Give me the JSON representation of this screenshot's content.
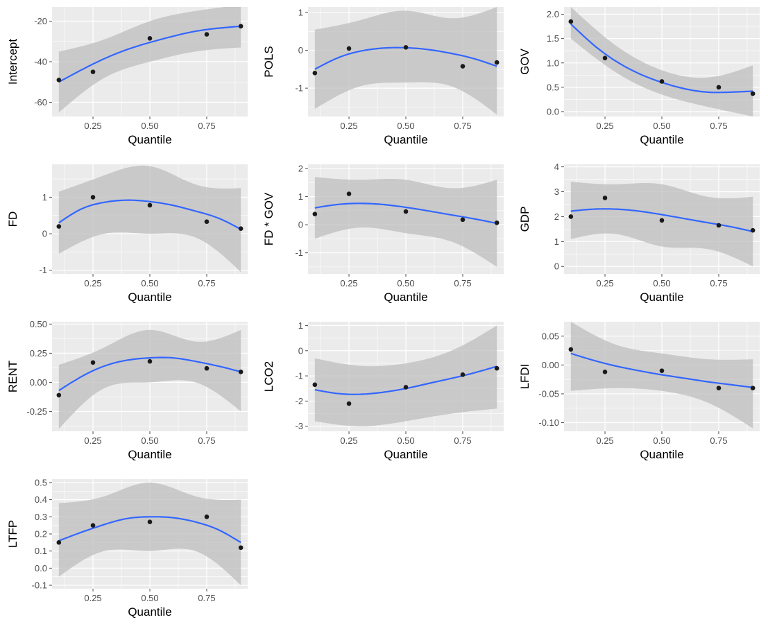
{
  "colors": {
    "panel_background": "#ebebeb",
    "grid_major": "#ffffff",
    "confidence_band": "#bdbdbd",
    "smooth_line": "#3366ff",
    "points": "#1a1a1a",
    "tick_text": "#4d4d4d"
  },
  "chart_data": [
    {
      "type": "scatter",
      "ylabel": "Intercept",
      "xlabel": "Quantile",
      "xlim": [
        0.07,
        0.93
      ],
      "ylim": [
        -67,
        -13
      ],
      "xticks": [
        0.25,
        0.5,
        0.75
      ],
      "xtick_labels": [
        "0.25",
        "0.50",
        "0.75"
      ],
      "yticks": [
        -60,
        -40,
        -20
      ],
      "ytick_labels": [
        "-60",
        "-40",
        "-20"
      ],
      "points": {
        "x": [
          0.1,
          0.25,
          0.5,
          0.75,
          0.9
        ],
        "y": [
          -49,
          -45,
          -28.5,
          -26.5,
          -22.5
        ]
      },
      "smooth": {
        "x": [
          0.1,
          0.2,
          0.3,
          0.4,
          0.5,
          0.6,
          0.7,
          0.8,
          0.9
        ],
        "y": [
          -50,
          -44,
          -38.5,
          -34,
          -30.5,
          -27.5,
          -25,
          -23.5,
          -22.5
        ]
      },
      "band": {
        "x": [
          0.1,
          0.3,
          0.5,
          0.7,
          0.9
        ],
        "lower": [
          -65,
          -48,
          -40,
          -35,
          -33
        ],
        "upper": [
          -35,
          -29,
          -20,
          -15,
          -12
        ]
      }
    },
    {
      "type": "scatter",
      "ylabel": "POLS",
      "xlabel": "Quantile",
      "xlim": [
        0.07,
        0.93
      ],
      "ylim": [
        -1.75,
        1.15
      ],
      "xticks": [
        0.25,
        0.5,
        0.75
      ],
      "xtick_labels": [
        "0.25",
        "0.50",
        "0.75"
      ],
      "yticks": [
        -1,
        0,
        1
      ],
      "ytick_labels": [
        "-1",
        "0",
        "1"
      ],
      "points": {
        "x": [
          0.1,
          0.25,
          0.5,
          0.75,
          0.9
        ],
        "y": [
          -0.6,
          0.05,
          0.08,
          -0.42,
          -0.32
        ]
      },
      "smooth": {
        "x": [
          0.1,
          0.2,
          0.3,
          0.4,
          0.5,
          0.6,
          0.7,
          0.8,
          0.9
        ],
        "y": [
          -0.5,
          -0.2,
          -0.02,
          0.06,
          0.07,
          0.02,
          -0.08,
          -0.22,
          -0.42
        ]
      },
      "band": {
        "x": [
          0.1,
          0.3,
          0.5,
          0.7,
          0.9
        ],
        "lower": [
          -1.55,
          -0.95,
          -0.85,
          -0.95,
          -1.7
        ],
        "upper": [
          0.55,
          0.8,
          1.05,
          0.85,
          1.15
        ]
      }
    },
    {
      "type": "scatter",
      "ylabel": "GOV",
      "xlabel": "Quantile",
      "xlim": [
        0.07,
        0.93
      ],
      "ylim": [
        -0.1,
        2.15
      ],
      "xticks": [
        0.25,
        0.5,
        0.75
      ],
      "xtick_labels": [
        "0.25",
        "0.50",
        "0.75"
      ],
      "yticks": [
        0,
        0.5,
        1,
        1.5,
        2
      ],
      "ytick_labels": [
        "0.0",
        "0.5",
        "1.0",
        "1.5",
        "2.0"
      ],
      "points": {
        "x": [
          0.1,
          0.25,
          0.5,
          0.75,
          0.9
        ],
        "y": [
          1.85,
          1.1,
          0.62,
          0.5,
          0.37
        ]
      },
      "smooth": {
        "x": [
          0.1,
          0.2,
          0.3,
          0.4,
          0.5,
          0.6,
          0.7,
          0.8,
          0.9
        ],
        "y": [
          1.8,
          1.37,
          1.03,
          0.78,
          0.6,
          0.47,
          0.4,
          0.4,
          0.42
        ]
      },
      "band": {
        "x": [
          0.1,
          0.3,
          0.5,
          0.7,
          0.9
        ],
        "lower": [
          1.5,
          0.8,
          0.35,
          0.1,
          -0.1
        ],
        "upper": [
          2.15,
          1.35,
          0.85,
          0.7,
          0.95
        ]
      }
    },
    {
      "type": "scatter",
      "ylabel": "FD",
      "xlabel": "Quantile",
      "xlim": [
        0.07,
        0.93
      ],
      "ylim": [
        -1.1,
        1.9
      ],
      "xticks": [
        0.25,
        0.5,
        0.75
      ],
      "xtick_labels": [
        "0.25",
        "0.50",
        "0.75"
      ],
      "yticks": [
        -1,
        0,
        1
      ],
      "ytick_labels": [
        "-1",
        "0",
        "1"
      ],
      "points": {
        "x": [
          0.1,
          0.25,
          0.5,
          0.75,
          0.9
        ],
        "y": [
          0.2,
          1.0,
          0.78,
          0.33,
          0.14
        ]
      },
      "smooth": {
        "x": [
          0.1,
          0.2,
          0.3,
          0.4,
          0.5,
          0.6,
          0.7,
          0.8,
          0.9
        ],
        "y": [
          0.3,
          0.68,
          0.86,
          0.92,
          0.88,
          0.78,
          0.62,
          0.43,
          0.12
        ]
      },
      "band": {
        "x": [
          0.1,
          0.3,
          0.5,
          0.7,
          0.9
        ],
        "lower": [
          -0.55,
          0.0,
          0.0,
          -0.1,
          -1.05
        ],
        "upper": [
          1.15,
          1.6,
          1.85,
          1.35,
          1.25
        ]
      }
    },
    {
      "type": "scatter",
      "ylabel": "FD * GOV",
      "xlabel": "Quantile",
      "xlim": [
        0.07,
        0.93
      ],
      "ylim": [
        -1.75,
        2.15
      ],
      "xticks": [
        0.25,
        0.5,
        0.75
      ],
      "xtick_labels": [
        "0.25",
        "0.50",
        "0.75"
      ],
      "yticks": [
        -1,
        0,
        1,
        2
      ],
      "ytick_labels": [
        "-1",
        "0",
        "1",
        "2"
      ],
      "points": {
        "x": [
          0.1,
          0.25,
          0.5,
          0.75,
          0.9
        ],
        "y": [
          0.38,
          1.1,
          0.47,
          0.18,
          0.07
        ]
      },
      "smooth": {
        "x": [
          0.1,
          0.2,
          0.3,
          0.4,
          0.5,
          0.6,
          0.7,
          0.8,
          0.9
        ],
        "y": [
          0.6,
          0.72,
          0.76,
          0.72,
          0.62,
          0.49,
          0.35,
          0.21,
          0.05
        ]
      },
      "band": {
        "x": [
          0.1,
          0.3,
          0.5,
          0.7,
          0.9
        ],
        "lower": [
          -0.5,
          -0.1,
          -0.3,
          -0.6,
          -1.5
        ],
        "upper": [
          1.7,
          1.6,
          1.6,
          1.3,
          1.6
        ]
      }
    },
    {
      "type": "scatter",
      "ylabel": "GDP",
      "xlabel": "Quantile",
      "xlim": [
        0.07,
        0.93
      ],
      "ylim": [
        -0.3,
        4.1
      ],
      "xticks": [
        0.25,
        0.5,
        0.75
      ],
      "xtick_labels": [
        "0.25",
        "0.50",
        "0.75"
      ],
      "yticks": [
        0,
        1,
        2,
        3,
        4
      ],
      "ytick_labels": [
        "0",
        "1",
        "2",
        "3",
        "4"
      ],
      "points": {
        "x": [
          0.1,
          0.25,
          0.5,
          0.75,
          0.9
        ],
        "y": [
          2.0,
          2.75,
          1.85,
          1.65,
          1.45
        ]
      },
      "smooth": {
        "x": [
          0.1,
          0.2,
          0.3,
          0.4,
          0.5,
          0.6,
          0.7,
          0.8,
          0.9
        ],
        "y": [
          2.22,
          2.3,
          2.3,
          2.22,
          2.08,
          1.92,
          1.76,
          1.6,
          1.4
        ]
      },
      "band": {
        "x": [
          0.1,
          0.3,
          0.5,
          0.7,
          0.9
        ],
        "lower": [
          1.1,
          1.3,
          0.8,
          0.7,
          0.0
        ],
        "upper": [
          3.4,
          3.3,
          3.3,
          2.8,
          2.8
        ]
      }
    },
    {
      "type": "scatter",
      "ylabel": "RENT",
      "xlabel": "Quantile",
      "xlim": [
        0.07,
        0.93
      ],
      "ylim": [
        -0.42,
        0.52
      ],
      "xticks": [
        0.25,
        0.5,
        0.75
      ],
      "xtick_labels": [
        "0.25",
        "0.50",
        "0.75"
      ],
      "yticks": [
        -0.25,
        0,
        0.25,
        0.5
      ],
      "ytick_labels": [
        "-0.25",
        "0.00",
        "0.25",
        "0.50"
      ],
      "points": {
        "x": [
          0.1,
          0.25,
          0.5,
          0.75,
          0.9
        ],
        "y": [
          -0.11,
          0.17,
          0.18,
          0.12,
          0.09
        ]
      },
      "smooth": {
        "x": [
          0.1,
          0.2,
          0.3,
          0.4,
          0.5,
          0.6,
          0.7,
          0.8,
          0.9
        ],
        "y": [
          -0.07,
          0.05,
          0.14,
          0.19,
          0.21,
          0.21,
          0.18,
          0.14,
          0.09
        ]
      },
      "band": {
        "x": [
          0.1,
          0.3,
          0.5,
          0.7,
          0.9
        ],
        "lower": [
          -0.4,
          -0.05,
          0.0,
          0.0,
          -0.25
        ],
        "upper": [
          0.15,
          0.3,
          0.45,
          0.35,
          0.45
        ]
      }
    },
    {
      "type": "scatter",
      "ylabel": "LCO2",
      "xlabel": "Quantile",
      "xlim": [
        0.07,
        0.93
      ],
      "ylim": [
        -3.2,
        1.15
      ],
      "xticks": [
        0.25,
        0.5,
        0.75
      ],
      "xtick_labels": [
        "0.25",
        "0.50",
        "0.75"
      ],
      "yticks": [
        -3,
        -2,
        -1,
        0,
        1
      ],
      "ytick_labels": [
        "-3",
        "-2",
        "-1",
        "0",
        "1"
      ],
      "points": {
        "x": [
          0.1,
          0.25,
          0.5,
          0.75,
          0.9
        ],
        "y": [
          -1.35,
          -2.1,
          -1.45,
          -0.95,
          -0.7
        ]
      },
      "smooth": {
        "x": [
          0.1,
          0.2,
          0.3,
          0.4,
          0.5,
          0.6,
          0.7,
          0.8,
          0.9
        ],
        "y": [
          -1.55,
          -1.7,
          -1.73,
          -1.65,
          -1.5,
          -1.3,
          -1.1,
          -0.88,
          -0.62
        ]
      },
      "band": {
        "x": [
          0.1,
          0.3,
          0.5,
          0.7,
          0.9
        ],
        "lower": [
          -2.8,
          -3.0,
          -2.8,
          -2.5,
          -2.3
        ],
        "upper": [
          -0.3,
          -0.6,
          -0.5,
          0.0,
          1.0
        ]
      }
    },
    {
      "type": "scatter",
      "ylabel": "LFDI",
      "xlabel": "Quantile",
      "xlim": [
        0.07,
        0.93
      ],
      "ylim": [
        -0.115,
        0.075
      ],
      "xticks": [
        0.25,
        0.5,
        0.75
      ],
      "xtick_labels": [
        "0.25",
        "0.50",
        "0.75"
      ],
      "yticks": [
        -0.1,
        -0.05,
        0,
        0.05
      ],
      "ytick_labels": [
        "-0.10",
        "-0.05",
        "0.00",
        "0.05"
      ],
      "points": {
        "x": [
          0.1,
          0.25,
          0.5,
          0.75,
          0.9
        ],
        "y": [
          0.027,
          -0.012,
          -0.01,
          -0.04,
          -0.04
        ]
      },
      "smooth": {
        "x": [
          0.1,
          0.2,
          0.3,
          0.4,
          0.5,
          0.6,
          0.7,
          0.8,
          0.9
        ],
        "y": [
          0.02,
          0.008,
          -0.002,
          -0.01,
          -0.017,
          -0.023,
          -0.029,
          -0.034,
          -0.039
        ]
      },
      "band": {
        "x": [
          0.1,
          0.3,
          0.5,
          0.7,
          0.9
        ],
        "lower": [
          -0.045,
          -0.04,
          -0.045,
          -0.065,
          -0.11
        ],
        "upper": [
          0.075,
          0.035,
          0.02,
          0.01,
          0.01
        ]
      }
    },
    {
      "type": "scatter",
      "ylabel": "LTFP",
      "xlabel": "Quantile",
      "xlim": [
        0.07,
        0.93
      ],
      "ylim": [
        -0.12,
        0.52
      ],
      "xticks": [
        0.25,
        0.5,
        0.75
      ],
      "xtick_labels": [
        "0.25",
        "0.50",
        "0.75"
      ],
      "yticks": [
        -0.1,
        0,
        0.1,
        0.2,
        0.3,
        0.4,
        0.5
      ],
      "ytick_labels": [
        "-0.1",
        "0.0",
        "0.1",
        "0.2",
        "0.3",
        "0.4",
        "0.5"
      ],
      "points": {
        "x": [
          0.1,
          0.25,
          0.5,
          0.75,
          0.9
        ],
        "y": [
          0.15,
          0.25,
          0.27,
          0.3,
          0.12
        ]
      },
      "smooth": {
        "x": [
          0.1,
          0.2,
          0.3,
          0.4,
          0.5,
          0.6,
          0.7,
          0.8,
          0.9
        ],
        "y": [
          0.16,
          0.21,
          0.255,
          0.29,
          0.3,
          0.295,
          0.27,
          0.225,
          0.15
        ]
      },
      "band": {
        "x": [
          0.1,
          0.3,
          0.5,
          0.7,
          0.9
        ],
        "lower": [
          -0.05,
          0.1,
          0.1,
          0.1,
          -0.1
        ],
        "upper": [
          0.38,
          0.42,
          0.5,
          0.42,
          0.4
        ]
      }
    }
  ]
}
